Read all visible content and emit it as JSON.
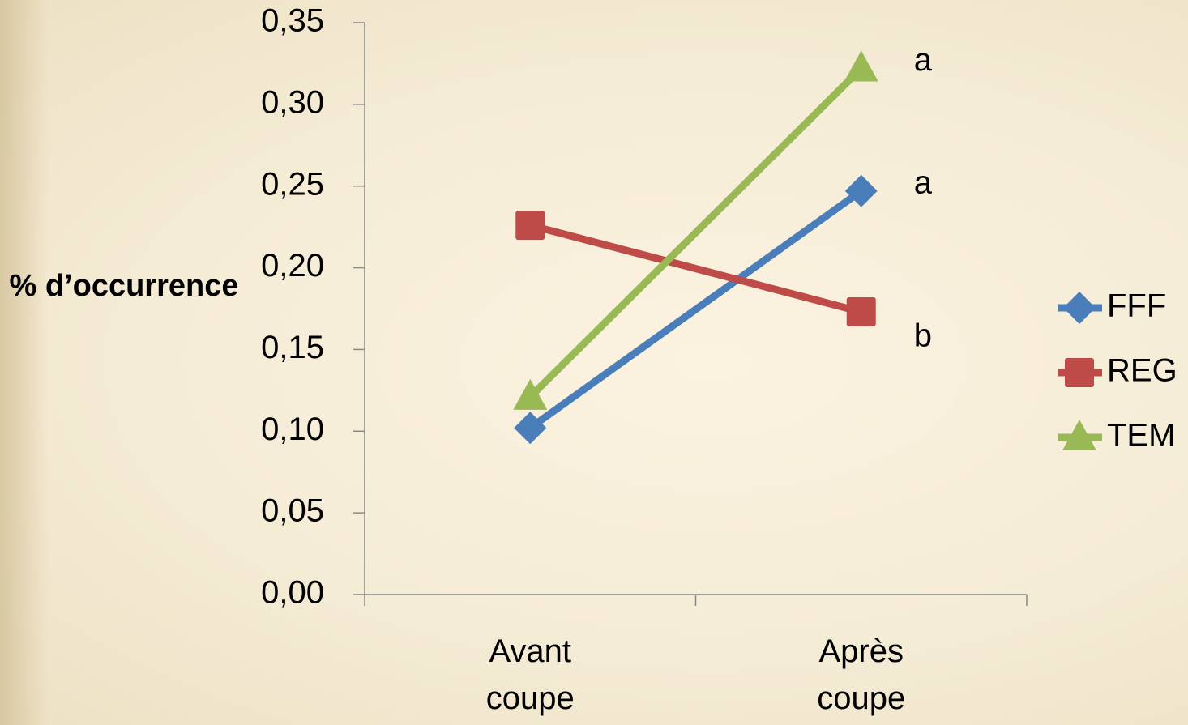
{
  "chart_data": {
    "type": "line",
    "y_label": "% d’occurrence",
    "categories": [
      "Avant coupe",
      "Après coupe"
    ],
    "series": [
      {
        "name": "FFF",
        "color": "#4a7ebb",
        "marker": "diamond",
        "values": [
          0.102,
          0.247
        ]
      },
      {
        "name": "REG",
        "color": "#be4b48",
        "marker": "square",
        "values": [
          0.226,
          0.173
        ]
      },
      {
        "name": "TEM",
        "color": "#98b954",
        "marker": "triangle",
        "values": [
          0.121,
          0.322
        ]
      }
    ],
    "ylim": [
      0,
      0.35
    ],
    "yticks": [
      {
        "value": 0,
        "label": "0,00"
      },
      {
        "value": 0.05,
        "label": "0,05"
      },
      {
        "value": 0.1,
        "label": "0,10"
      },
      {
        "value": 0.15,
        "label": "0,15"
      },
      {
        "value": 0.2,
        "label": "0,20"
      },
      {
        "value": 0.25,
        "label": "0,25"
      },
      {
        "value": 0.3,
        "label": "0,30"
      },
      {
        "value": 0.35,
        "label": "0,35"
      }
    ],
    "annotations": [
      {
        "text": "a",
        "series": "TEM"
      },
      {
        "text": "a",
        "series": "FFF"
      },
      {
        "text": "b",
        "series": "REG"
      }
    ],
    "legend": "right"
  }
}
